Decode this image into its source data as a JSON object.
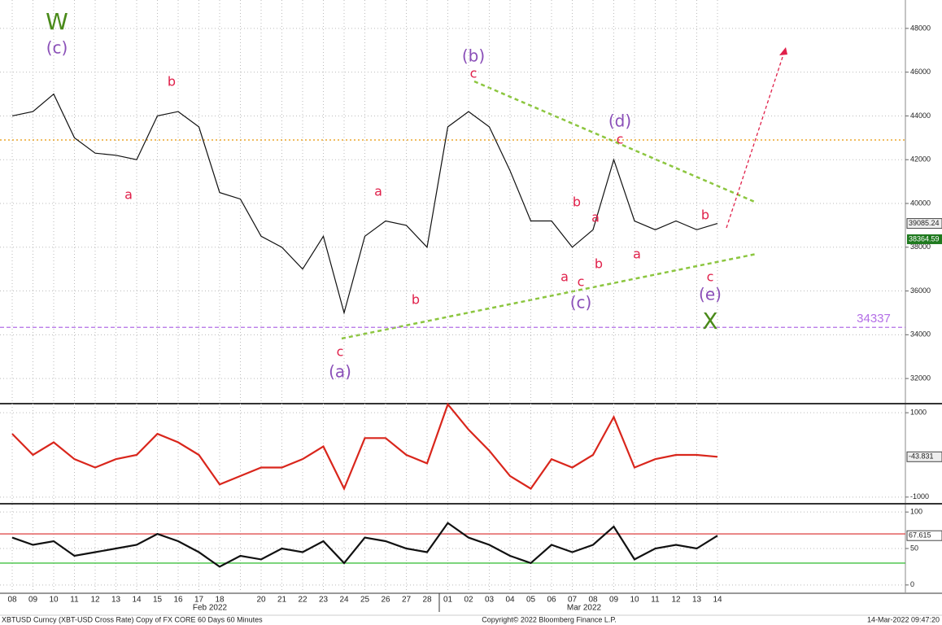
{
  "chart_data": [
    {
      "type": "line",
      "categories": [
        "08",
        "09",
        "10",
        "11",
        "12",
        "13",
        "14",
        "15",
        "16",
        "17",
        "18",
        null,
        "20",
        "21",
        "22",
        "23",
        "24",
        "25",
        "26",
        "27",
        "28",
        "01",
        "02",
        "03",
        "04",
        "05",
        "06",
        "07",
        "08",
        "09",
        "10",
        "11",
        "12",
        "13",
        "14"
      ],
      "x_groups": [
        "Feb 2022",
        "Mar 2022"
      ],
      "series": [
        {
          "color": "#111111",
          "values": [
            44000,
            44200,
            45000,
            43000,
            42300,
            42200,
            42000,
            44000,
            44200,
            43500,
            40500,
            40200,
            38500,
            38000,
            37000,
            38500,
            35000,
            38500,
            39200,
            39000,
            38000,
            43500,
            44200,
            43500,
            41500,
            39200,
            39200,
            38000,
            38800,
            42000,
            39200,
            38800,
            39200,
            38800,
            39085.24
          ]
        }
      ],
      "ylim": [
        31000,
        49000
      ],
      "yticks": [
        32000,
        34000,
        36000,
        38000,
        40000,
        42000,
        44000,
        46000,
        48000
      ],
      "grid": true,
      "ref_lines": [
        {
          "value": 42900,
          "color": "#e69500",
          "style": "dotted"
        },
        {
          "value": 34337,
          "color": "#b36ee6",
          "style": "dashed"
        }
      ],
      "markers": [
        {
          "value": 38364.59,
          "color": "#1f7a1f"
        }
      ],
      "annotations": [
        {
          "text": "W",
          "color": "#4a8a1a"
        },
        {
          "text": "(c)",
          "color": "#8a4fb8"
        },
        {
          "text": "b",
          "color": "#e0204a"
        },
        {
          "text": "a",
          "color": "#e0204a"
        },
        {
          "text": "a",
          "color": "#e0204a"
        },
        {
          "text": "b",
          "color": "#e0204a"
        },
        {
          "text": "c",
          "color": "#e0204a"
        },
        {
          "text": "(a)",
          "color": "#8a4fb8"
        },
        {
          "text": "(b)",
          "color": "#8a4fb8"
        },
        {
          "text": "c",
          "color": "#e0204a"
        },
        {
          "text": "(d)",
          "color": "#8a4fb8"
        },
        {
          "text": "c",
          "color": "#e0204a"
        },
        {
          "text": "b",
          "color": "#e0204a"
        },
        {
          "text": "a",
          "color": "#e0204a"
        },
        {
          "text": "b",
          "color": "#e0204a"
        },
        {
          "text": "a",
          "color": "#e0204a"
        },
        {
          "text": "c",
          "color": "#e0204a"
        },
        {
          "text": "(c)",
          "color": "#8a4fb8"
        },
        {
          "text": "a",
          "color": "#e0204a"
        },
        {
          "text": "b",
          "color": "#e0204a"
        },
        {
          "text": "c",
          "color": "#e0204a"
        },
        {
          "text": "(e)",
          "color": "#8a4fb8"
        },
        {
          "text": "X",
          "color": "#4a8a1a"
        }
      ]
    },
    {
      "type": "line",
      "series": [
        {
          "color": "#d9261c",
          "values": [
            500,
            0,
            300,
            -100,
            -300,
            -100,
            0,
            500,
            300,
            0,
            -700,
            -500,
            -300,
            -300,
            -100,
            200,
            -800,
            400,
            400,
            0,
            -200,
            1200,
            600,
            100,
            -500,
            -800,
            -100,
            -300,
            0,
            900,
            -300,
            -100,
            0,
            0,
            -43.831
          ]
        }
      ],
      "ylim": [
        -1100,
        1100
      ],
      "yticks": [
        -1000,
        1000
      ],
      "grid": true
    },
    {
      "type": "line",
      "series": [
        {
          "color": "#111111",
          "values": [
            65,
            55,
            60,
            40,
            45,
            50,
            55,
            70,
            60,
            45,
            25,
            40,
            35,
            50,
            45,
            60,
            30,
            65,
            60,
            50,
            45,
            85,
            65,
            55,
            40,
            30,
            55,
            45,
            55,
            80,
            35,
            50,
            55,
            50,
            67.615
          ]
        }
      ],
      "ylim": [
        -8,
        108
      ],
      "yticks": [
        0,
        50,
        100
      ],
      "grid": true,
      "ref_lines": [
        {
          "value": 70,
          "color": "#e05050",
          "style": "solid"
        },
        {
          "value": 30,
          "color": "#40c040",
          "style": "solid"
        }
      ]
    }
  ],
  "footer": {
    "left": "XBTUSD Curncy (XBT-USD Cross Rate) Copy of FX CORE 60 Days 60 Minutes",
    "center": "Copyright© 2022 Bloomberg Finance L.P.",
    "right": "14-Mar-2022 09:47:20"
  }
}
